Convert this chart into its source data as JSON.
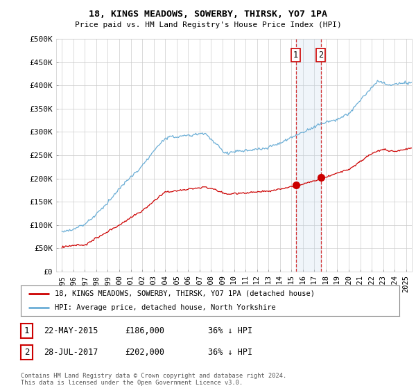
{
  "title": "18, KINGS MEADOWS, SOWERBY, THIRSK, YO7 1PA",
  "subtitle": "Price paid vs. HM Land Registry's House Price Index (HPI)",
  "legend_line1": "18, KINGS MEADOWS, SOWERBY, THIRSK, YO7 1PA (detached house)",
  "legend_line2": "HPI: Average price, detached house, North Yorkshire",
  "footnote": "Contains HM Land Registry data © Crown copyright and database right 2024.\nThis data is licensed under the Open Government Licence v3.0.",
  "table_rows": [
    {
      "num": "1",
      "date": "22-MAY-2015",
      "price": "£186,000",
      "hpi": "36% ↓ HPI"
    },
    {
      "num": "2",
      "date": "28-JUL-2017",
      "price": "£202,000",
      "hpi": "36% ↓ HPI"
    }
  ],
  "sale1_x": 2015.38,
  "sale1_y": 186000,
  "sale2_x": 2017.57,
  "sale2_y": 202000,
  "vline1_x": 2015.38,
  "vline2_x": 2017.57,
  "shade_x1": 2015.38,
  "shade_x2": 2017.57,
  "ylim": [
    0,
    500000
  ],
  "xlim_start": 1994.5,
  "xlim_end": 2025.5,
  "yticks": [
    0,
    50000,
    100000,
    150000,
    200000,
    250000,
    300000,
    350000,
    400000,
    450000,
    500000
  ],
  "ytick_labels": [
    "£0",
    "£50K",
    "£100K",
    "£150K",
    "£200K",
    "£250K",
    "£300K",
    "£350K",
    "£400K",
    "£450K",
    "£500K"
  ],
  "xticks": [
    1995,
    1996,
    1997,
    1998,
    1999,
    2000,
    2001,
    2002,
    2003,
    2004,
    2005,
    2006,
    2007,
    2008,
    2009,
    2010,
    2011,
    2012,
    2013,
    2014,
    2015,
    2016,
    2017,
    2018,
    2019,
    2020,
    2021,
    2022,
    2023,
    2024,
    2025
  ],
  "hpi_color": "#6baed6",
  "price_color": "#cc0000",
  "marker_color": "#cc0000",
  "vline_color": "#cc0000",
  "shade_color": "#c6dbef",
  "grid_color": "#cccccc",
  "bg_color": "#ffffff"
}
